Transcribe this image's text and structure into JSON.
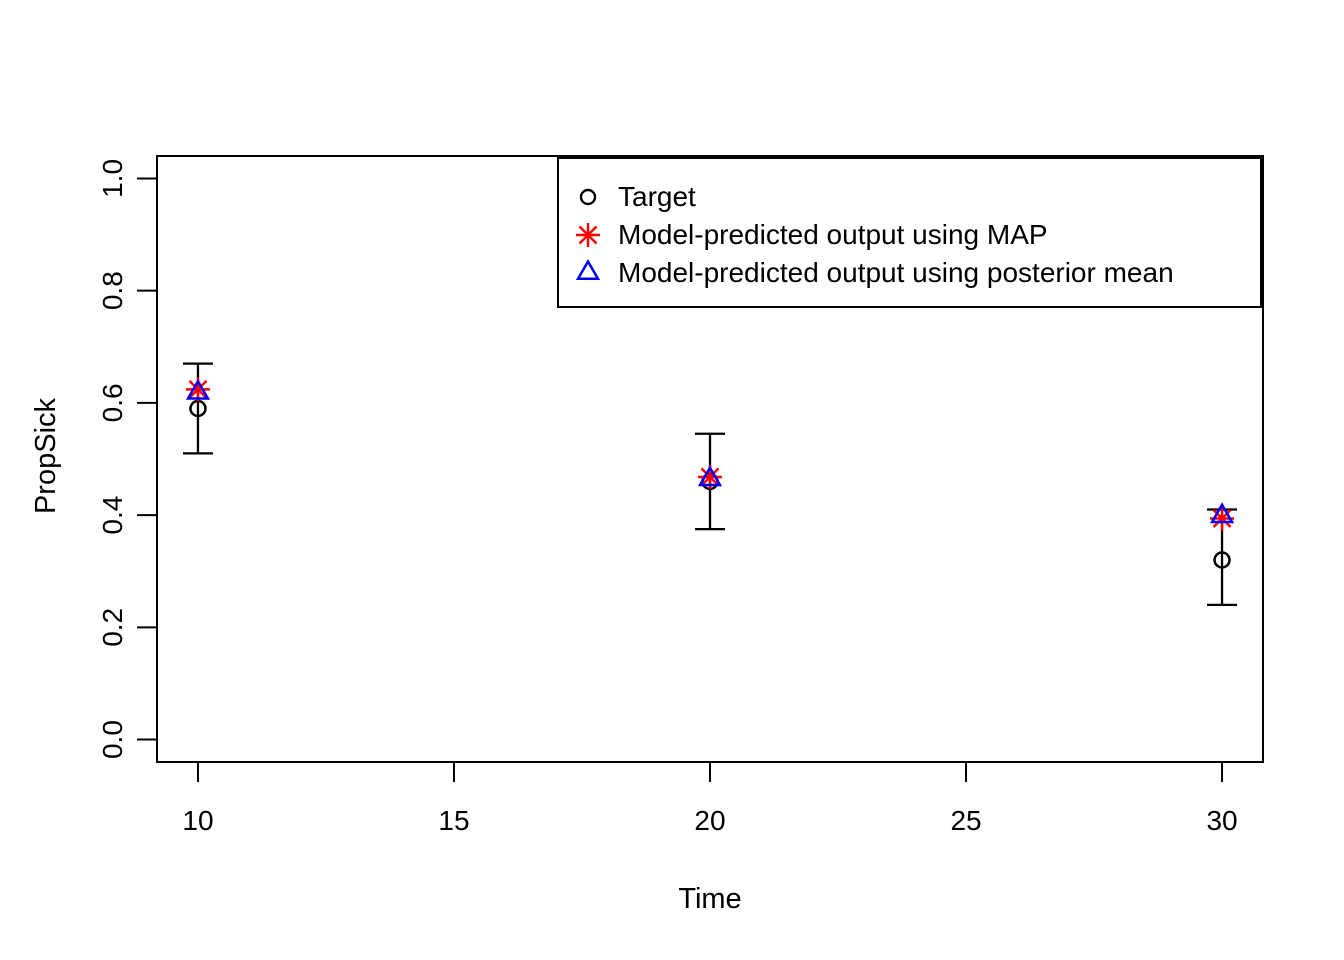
{
  "chart_data": {
    "type": "scatter",
    "title": "",
    "xlabel": "Time",
    "ylabel": "PropSick",
    "xlim": [
      9.2,
      30.8
    ],
    "ylim": [
      -0.04,
      1.04
    ],
    "x_ticks": [
      "10",
      "15",
      "20",
      "25",
      "30"
    ],
    "y_ticks": [
      "0.0",
      "0.2",
      "0.4",
      "0.6",
      "0.8",
      "1.0"
    ],
    "grid": false,
    "background_color": "#FFFFFF",
    "axis_color": "#000000",
    "x": [
      10,
      20,
      30
    ],
    "series": [
      {
        "name": "Target",
        "marker": "open-circle",
        "color": "#000000",
        "values": [
          0.59,
          0.46,
          0.32
        ]
      },
      {
        "name": "Model-predicted output using MAP",
        "marker": "asterisk",
        "color": "#FF0000",
        "values": [
          0.624,
          0.468,
          0.394
        ]
      },
      {
        "name": "Model-predicted output using posterior mean",
        "marker": "open-triangle",
        "color": "#0000FF",
        "values": [
          0.618,
          0.464,
          0.398
        ]
      }
    ],
    "error_bars": {
      "attached_to": "Target",
      "color": "#000000",
      "lower": [
        0.51,
        0.375,
        0.24
      ],
      "upper": [
        0.67,
        0.545,
        0.41
      ]
    },
    "legend": {
      "position": "top-right",
      "entries": [
        "Target",
        "Model-predicted output using MAP",
        "Model-predicted output using posterior mean"
      ]
    }
  }
}
